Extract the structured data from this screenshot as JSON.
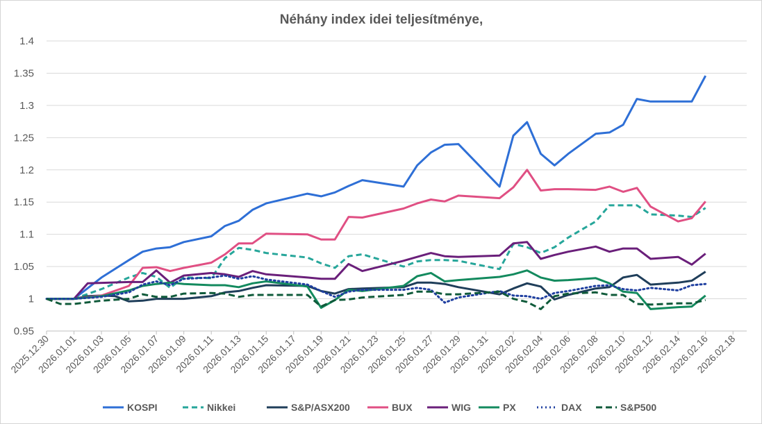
{
  "chart_data": {
    "type": "line",
    "title": "Néhány index idei teljesítménye,",
    "xlabel": "",
    "ylabel": "",
    "ylim": [
      0.95,
      1.4
    ],
    "yticks": [
      0.95,
      1,
      1.05,
      1.1,
      1.15,
      1.2,
      1.25,
      1.3,
      1.35,
      1.4
    ],
    "ytick_labels": [
      "0.95",
      "1",
      "1.05",
      "1.1",
      "1.15",
      "1.2",
      "1.25",
      "1.3",
      "1.35",
      "1.4"
    ],
    "x_range_days": [
      0,
      51
    ],
    "x_tick_labels": [
      "2025.12.30",
      "2026.01.01",
      "2026.01.03",
      "2026.01.05",
      "2026.01.07",
      "2026.01.09",
      "2026.01.11",
      "2026.01.13",
      "2026.01.15",
      "2026.01.17",
      "2026.01.19",
      "2026.01.21",
      "2026.01.23",
      "2026.01.25",
      "2026.01.27",
      "2026.01.29",
      "2026.01.31",
      "2026.02.02",
      "2026.02.04",
      "2026.02.06",
      "2026.02.08",
      "2026.02.10",
      "2026.02.12",
      "2026.02.14",
      "2026.02.16",
      "2026.02.18"
    ],
    "grid": true,
    "legend_position": "bottom",
    "series": [
      {
        "name": "KOSPI",
        "color": "#2E6FD6",
        "dash": "solid",
        "x": [
          0,
          2,
          4,
          6,
          7,
          8,
          9,
          10,
          12,
          13,
          14,
          15,
          16,
          19,
          20,
          21,
          22,
          23,
          26,
          27,
          28,
          29,
          30,
          33,
          34,
          35,
          36,
          37,
          38,
          40,
          41,
          42,
          43,
          44,
          46,
          47,
          48
        ],
        "y": [
          1.0,
          1.0,
          1.033,
          1.06,
          1.073,
          1.078,
          1.08,
          1.088,
          1.097,
          1.113,
          1.121,
          1.138,
          1.148,
          1.163,
          1.159,
          1.165,
          1.175,
          1.184,
          1.174,
          1.207,
          1.227,
          1.239,
          1.24,
          1.174,
          1.253,
          1.274,
          1.225,
          1.207,
          1.225,
          1.256,
          1.258,
          1.27,
          1.31,
          1.306,
          1.306,
          1.306,
          1.346
        ]
      },
      {
        "name": "Nikkei",
        "color": "#26A69A",
        "dash": "dashed",
        "x": [
          0,
          2,
          4,
          6,
          7,
          8,
          9,
          10,
          12,
          13,
          14,
          15,
          16,
          19,
          20,
          21,
          22,
          23,
          26,
          27,
          28,
          29,
          30,
          33,
          34,
          35,
          36,
          37,
          38,
          40,
          41,
          42,
          43,
          44,
          46,
          47,
          48
        ],
        "y": [
          1.0,
          1.0,
          1.015,
          1.033,
          1.04,
          1.034,
          1.017,
          1.033,
          1.032,
          1.063,
          1.079,
          1.076,
          1.071,
          1.064,
          1.055,
          1.048,
          1.066,
          1.069,
          1.05,
          1.058,
          1.06,
          1.06,
          1.059,
          1.046,
          1.085,
          1.08,
          1.071,
          1.08,
          1.095,
          1.12,
          1.145,
          1.145,
          1.145,
          1.131,
          1.129,
          1.127,
          1.141
        ]
      },
      {
        "name": "S&P/ASX200",
        "color": "#1F3E5A",
        "dash": "solid",
        "x": [
          0,
          2,
          3,
          4,
          5,
          6,
          7,
          8,
          9,
          10,
          12,
          13,
          14,
          15,
          16,
          19,
          20,
          21,
          22,
          23,
          26,
          27,
          28,
          29,
          30,
          33,
          34,
          35,
          36,
          37,
          38,
          40,
          41,
          42,
          43,
          44,
          46,
          47,
          48
        ],
        "y": [
          1.0,
          1.0,
          1.004,
          1.005,
          1.004,
          0.996,
          0.997,
          1.0,
          1.0,
          1.0,
          1.004,
          1.01,
          1.012,
          1.017,
          1.021,
          1.02,
          1.012,
          1.008,
          1.015,
          1.016,
          1.018,
          1.025,
          1.025,
          1.023,
          1.018,
          1.007,
          1.016,
          1.024,
          1.019,
          0.999,
          1.006,
          1.016,
          1.018,
          1.033,
          1.037,
          1.022,
          1.025,
          1.028,
          1.042
        ]
      },
      {
        "name": "BUX",
        "color": "#E04F83",
        "dash": "solid",
        "x": [
          0,
          2,
          4,
          6,
          7,
          8,
          9,
          10,
          12,
          13,
          14,
          15,
          16,
          19,
          20,
          21,
          22,
          23,
          26,
          27,
          28,
          29,
          30,
          33,
          34,
          35,
          36,
          37,
          38,
          40,
          41,
          42,
          43,
          44,
          46,
          47,
          48
        ],
        "y": [
          1.0,
          1.0,
          1.005,
          1.02,
          1.048,
          1.049,
          1.043,
          1.048,
          1.056,
          1.069,
          1.086,
          1.086,
          1.101,
          1.1,
          1.092,
          1.092,
          1.127,
          1.126,
          1.14,
          1.148,
          1.154,
          1.151,
          1.16,
          1.156,
          1.173,
          1.2,
          1.168,
          1.17,
          1.17,
          1.169,
          1.174,
          1.166,
          1.172,
          1.143,
          1.12,
          1.125,
          1.151
        ]
      },
      {
        "name": "WIG",
        "color": "#6A1F7A",
        "dash": "solid",
        "x": [
          0,
          2,
          3,
          6,
          7,
          8,
          9,
          10,
          12,
          13,
          14,
          15,
          16,
          19,
          20,
          21,
          22,
          23,
          26,
          27,
          28,
          29,
          30,
          33,
          34,
          35,
          36,
          37,
          38,
          40,
          41,
          42,
          43,
          44,
          46,
          47,
          48
        ],
        "y": [
          1.0,
          1.0,
          1.024,
          1.026,
          1.026,
          1.044,
          1.025,
          1.036,
          1.04,
          1.038,
          1.034,
          1.043,
          1.038,
          1.033,
          1.031,
          1.031,
          1.054,
          1.043,
          1.059,
          1.065,
          1.071,
          1.066,
          1.065,
          1.067,
          1.086,
          1.088,
          1.062,
          1.068,
          1.073,
          1.081,
          1.073,
          1.078,
          1.078,
          1.062,
          1.065,
          1.053,
          1.07
        ]
      },
      {
        "name": "PX",
        "color": "#138A5E",
        "dash": "solid",
        "x": [
          0,
          2,
          4,
          6,
          7,
          8,
          9,
          10,
          12,
          13,
          14,
          15,
          16,
          19,
          20,
          21,
          22,
          23,
          26,
          27,
          28,
          29,
          30,
          33,
          34,
          35,
          36,
          37,
          38,
          40,
          41,
          42,
          43,
          44,
          46,
          47,
          48
        ],
        "y": [
          1.0,
          1.0,
          1.004,
          1.013,
          1.02,
          1.023,
          1.025,
          1.023,
          1.021,
          1.021,
          1.018,
          1.024,
          1.027,
          1.019,
          0.986,
          0.998,
          1.014,
          1.012,
          1.02,
          1.035,
          1.04,
          1.027,
          1.029,
          1.034,
          1.038,
          1.044,
          1.033,
          1.028,
          1.029,
          1.032,
          1.024,
          1.011,
          1.009,
          0.984,
          0.987,
          0.988,
          1.005
        ]
      },
      {
        "name": "DAX",
        "color": "#1F3FA0",
        "dash": "dotted",
        "x": [
          0,
          2,
          4,
          6,
          7,
          8,
          9,
          10,
          12,
          13,
          14,
          15,
          16,
          19,
          20,
          21,
          22,
          23,
          26,
          27,
          28,
          29,
          30,
          33,
          34,
          35,
          36,
          37,
          38,
          40,
          41,
          42,
          43,
          44,
          46,
          47,
          48
        ],
        "y": [
          1.0,
          1.0,
          1.003,
          1.01,
          1.022,
          1.027,
          1.021,
          1.031,
          1.033,
          1.036,
          1.031,
          1.035,
          1.03,
          1.022,
          1.012,
          1.003,
          1.011,
          1.014,
          1.014,
          1.017,
          1.014,
          0.994,
          1.002,
          1.012,
          1.005,
          1.004,
          1.0,
          1.009,
          1.012,
          1.02,
          1.021,
          1.015,
          1.013,
          1.017,
          1.013,
          1.021,
          1.023
        ]
      },
      {
        "name": "S&P500",
        "color": "#0F5A3A",
        "dash": "dashed-long",
        "x": [
          0,
          1,
          2,
          4,
          6,
          7,
          8,
          9,
          10,
          12,
          13,
          14,
          15,
          16,
          19,
          20,
          21,
          22,
          23,
          26,
          27,
          28,
          29,
          30,
          33,
          34,
          35,
          36,
          37,
          38,
          40,
          41,
          42,
          43,
          44,
          46,
          47,
          48
        ],
        "y": [
          1.0,
          0.992,
          0.992,
          0.997,
          1.0,
          1.007,
          1.003,
          1.003,
          1.008,
          1.009,
          1.008,
          1.003,
          1.006,
          1.006,
          1.006,
          0.988,
          0.998,
          0.999,
          1.002,
          1.006,
          1.011,
          1.011,
          1.007,
          1.007,
          1.011,
          1.0,
          0.995,
          0.984,
          1.004,
          1.008,
          1.01,
          1.006,
          1.006,
          0.992,
          0.991,
          0.993,
          0.993,
          0.998
        ]
      }
    ]
  }
}
